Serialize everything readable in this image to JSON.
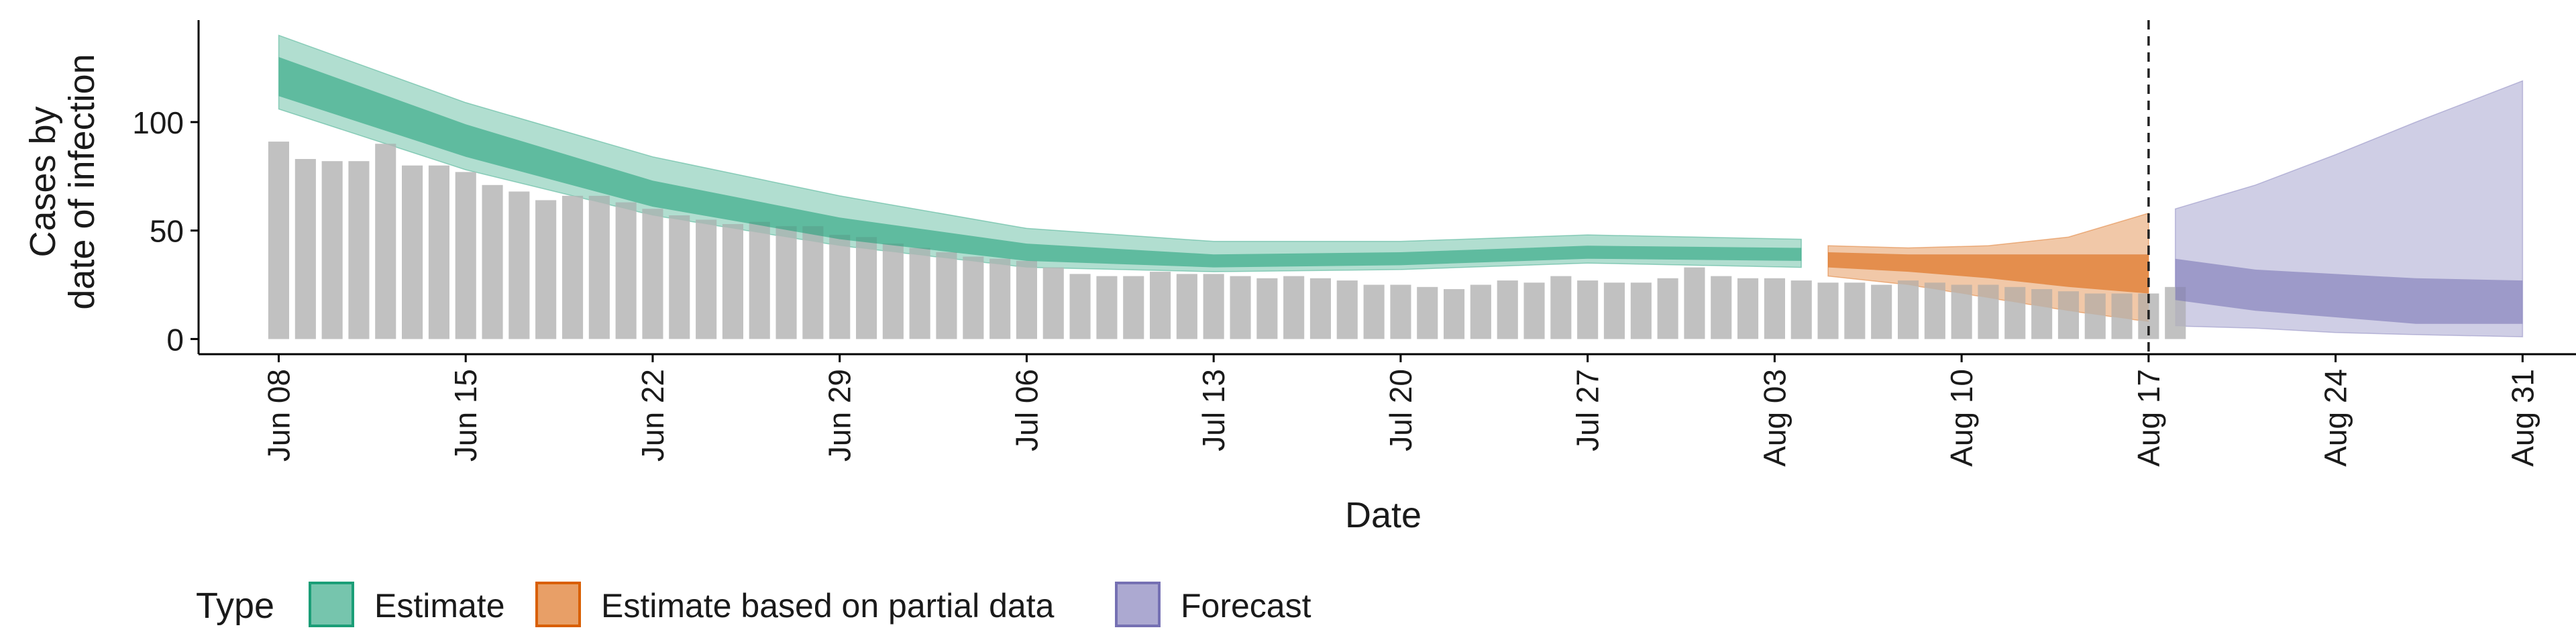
{
  "chart_data": {
    "type": "area",
    "xlabel": "Date",
    "ylabel_lines": [
      "Cases by",
      "date of infection"
    ],
    "yticks": [
      0,
      50,
      100
    ],
    "ylim": [
      -7,
      147
    ],
    "xlim": [
      "2020-06-05",
      "2020-09-02"
    ],
    "xticks": [
      "Jun 08",
      "Jun 15",
      "Jun 22",
      "Jun 29",
      "Jul 06",
      "Jul 13",
      "Jul 20",
      "Jul 27",
      "Aug 03",
      "Aug 10",
      "Aug 17",
      "Aug 24",
      "Aug 31"
    ],
    "xtick_dates": [
      "2020-06-08",
      "2020-06-15",
      "2020-06-22",
      "2020-06-29",
      "2020-07-06",
      "2020-07-13",
      "2020-07-20",
      "2020-07-27",
      "2020-08-03",
      "2020-08-10",
      "2020-08-17",
      "2020-08-24",
      "2020-08-31"
    ],
    "forecast_date": "2020-08-17",
    "legend": {
      "title": "Type",
      "position": "bottom",
      "items": [
        {
          "label": "Estimate",
          "color": "#1b9e77"
        },
        {
          "label": "Estimate based on partial data",
          "color": "#d95f02"
        },
        {
          "label": "Forecast",
          "color": "#7570b3"
        }
      ]
    },
    "bars": {
      "color": "#bebebe",
      "start_date": "2020-06-08",
      "values": [
        91,
        83,
        82,
        82,
        90,
        80,
        80,
        77,
        71,
        68,
        64,
        66,
        66,
        63,
        60,
        57,
        55,
        53,
        54,
        52,
        52,
        48,
        47,
        44,
        42,
        40,
        38,
        37,
        36,
        33,
        30,
        29,
        29,
        31,
        30,
        30,
        29,
        28,
        29,
        28,
        27,
        25,
        25,
        24,
        23,
        25,
        27,
        26,
        29,
        27,
        26,
        26,
        28,
        33,
        29,
        28,
        28,
        27,
        26,
        26,
        25,
        27,
        26,
        25,
        25,
        24,
        23,
        22,
        21,
        21,
        21,
        24
      ]
    },
    "series": [
      {
        "name": "Estimate",
        "color": "#1b9e77",
        "x": [
          "2020-06-08",
          "2020-06-15",
          "2020-06-22",
          "2020-06-29",
          "2020-07-06",
          "2020-07-13",
          "2020-07-20",
          "2020-07-27",
          "2020-08-04"
        ],
        "outer_upper": [
          140,
          109,
          84,
          66,
          51,
          45,
          45,
          48,
          46
        ],
        "inner_upper": [
          130,
          99,
          73,
          56,
          44,
          39,
          40,
          43,
          42
        ],
        "inner_lower": [
          112,
          84,
          61,
          46,
          36,
          33,
          34,
          37,
          36
        ],
        "outer_lower": [
          106,
          78,
          57,
          43,
          33,
          31,
          32,
          35,
          33
        ]
      },
      {
        "name": "Estimate based on partial data",
        "color": "#d95f02",
        "x": [
          "2020-08-05",
          "2020-08-08",
          "2020-08-11",
          "2020-08-14",
          "2020-08-17"
        ],
        "outer_upper": [
          43,
          42,
          43,
          47,
          58
        ],
        "inner_upper": [
          40,
          39,
          39,
          39,
          39
        ],
        "inner_lower": [
          33,
          31,
          28,
          24,
          21
        ],
        "outer_lower": [
          29,
          25,
          19,
          13,
          8
        ]
      },
      {
        "name": "Forecast",
        "color": "#7570b3",
        "x": [
          "2020-08-18",
          "2020-08-21",
          "2020-08-24",
          "2020-08-27",
          "2020-08-31"
        ],
        "outer_upper": [
          60,
          71,
          85,
          100,
          119
        ],
        "inner_upper": [
          37,
          32,
          30,
          28,
          27
        ],
        "inner_lower": [
          18,
          13,
          10,
          7,
          7
        ],
        "outer_lower": [
          6,
          5,
          3,
          2,
          1
        ]
      }
    ]
  }
}
